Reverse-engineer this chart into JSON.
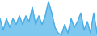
{
  "values": [
    3,
    1,
    3,
    1.5,
    3,
    2,
    3.5,
    2,
    3.5,
    2.5,
    5,
    2,
    3.5,
    2,
    3.5,
    6,
    4,
    1.5,
    0.5,
    0.2,
    2,
    0.5,
    3,
    1.5,
    2.5,
    4,
    1,
    2.5,
    0.5,
    4,
    0.5
  ],
  "line_color": "#4baee8",
  "fill_color": "#7ec8f0",
  "background_color": "#ffffff",
  "linewidth": 1.0
}
